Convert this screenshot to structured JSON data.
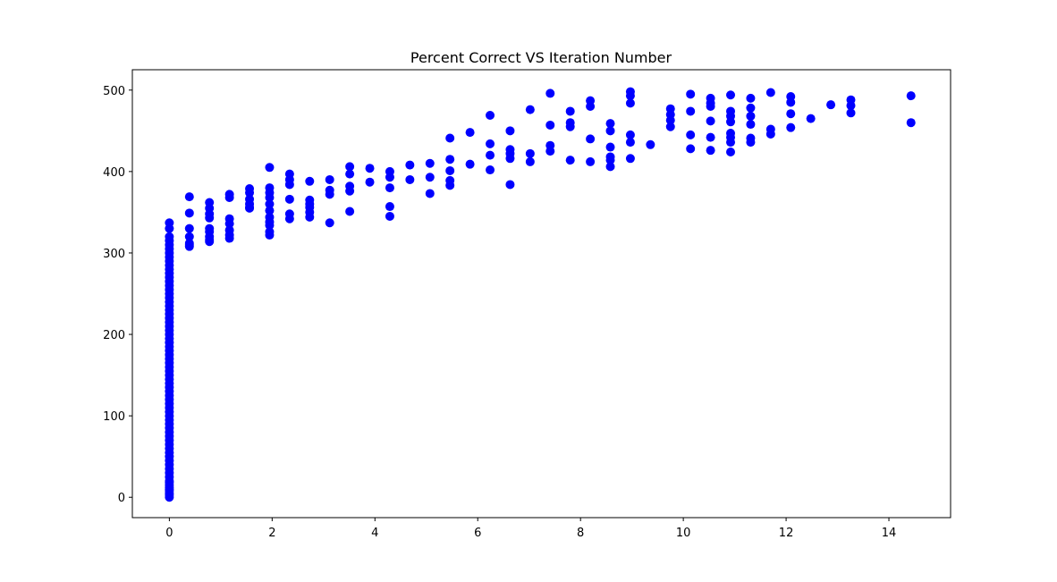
{
  "chart_data": {
    "type": "scatter",
    "title": "Percent Correct VS Iteration Number",
    "xlabel": "",
    "ylabel": "",
    "xlim": [
      -0.72,
      15.2
    ],
    "ylim": [
      -25,
      525
    ],
    "xticks": [
      0,
      2,
      4,
      6,
      8,
      10,
      12,
      14
    ],
    "yticks": [
      0,
      100,
      200,
      300,
      400,
      500
    ],
    "grid": false,
    "color": "#0000ff",
    "x": [
      0,
      0,
      0,
      0,
      0,
      0,
      0,
      0,
      0,
      0,
      0,
      0,
      0,
      0,
      0,
      0,
      0,
      0,
      0,
      0,
      0,
      0,
      0,
      0,
      0,
      0,
      0,
      0,
      0,
      0,
      0,
      0,
      0,
      0,
      0,
      0,
      0,
      0,
      0,
      0,
      0,
      0,
      0,
      0,
      0,
      0,
      0,
      0,
      0,
      0,
      0,
      0,
      0,
      0,
      0,
      0,
      0,
      0,
      0,
      0,
      0,
      0,
      0,
      0,
      0,
      0,
      0,
      0,
      0,
      0,
      0,
      0.39,
      0.39,
      0.39,
      0.39,
      0.39,
      0.39,
      0.39,
      0.78,
      0.78,
      0.78,
      0.78,
      0.78,
      0.78,
      0.78,
      0.78,
      0.78,
      1.17,
      1.17,
      1.17,
      1.17,
      1.17,
      1.17,
      1.17,
      1.56,
      1.56,
      1.56,
      1.56,
      1.56,
      1.56,
      1.95,
      1.95,
      1.95,
      1.95,
      1.95,
      1.95,
      1.95,
      1.95,
      1.95,
      1.95,
      1.95,
      2.34,
      2.34,
      2.34,
      2.34,
      2.34,
      2.34,
      2.73,
      2.73,
      2.73,
      2.73,
      2.73,
      2.73,
      3.12,
      3.12,
      3.12,
      3.12,
      3.51,
      3.51,
      3.51,
      3.51,
      3.51,
      3.9,
      3.9,
      4.29,
      4.29,
      4.29,
      4.29,
      4.29,
      4.68,
      4.68,
      5.07,
      5.07,
      5.07,
      5.46,
      5.46,
      5.46,
      5.46,
      5.46,
      5.85,
      5.85,
      6.24,
      6.24,
      6.24,
      6.24,
      6.63,
      6.63,
      6.63,
      6.63,
      6.63,
      7.02,
      7.02,
      7.02,
      7.41,
      7.41,
      7.41,
      7.41,
      7.8,
      7.8,
      7.8,
      7.8,
      8.19,
      8.19,
      8.19,
      8.19,
      8.58,
      8.58,
      8.58,
      8.58,
      8.58,
      8.58,
      8.97,
      8.97,
      8.97,
      8.97,
      8.97,
      8.97,
      9.36,
      9.75,
      9.75,
      9.75,
      9.75,
      10.14,
      10.14,
      10.14,
      10.14,
      10.53,
      10.53,
      10.53,
      10.53,
      10.53,
      10.53,
      10.92,
      10.92,
      10.92,
      10.92,
      10.92,
      10.92,
      10.92,
      10.92,
      11.31,
      11.31,
      11.31,
      11.31,
      11.31,
      11.31,
      11.7,
      11.7,
      11.7,
      12.09,
      12.09,
      12.09,
      12.09,
      12.48,
      12.87,
      13.26,
      13.26,
      13.26,
      14.43,
      14.43
    ],
    "y": [
      0,
      5,
      10,
      15,
      20,
      25,
      30,
      35,
      40,
      45,
      50,
      55,
      60,
      65,
      70,
      75,
      80,
      85,
      90,
      95,
      100,
      105,
      110,
      115,
      120,
      125,
      130,
      135,
      140,
      145,
      150,
      155,
      160,
      165,
      170,
      175,
      180,
      185,
      190,
      195,
      200,
      205,
      210,
      215,
      220,
      225,
      230,
      235,
      240,
      245,
      250,
      255,
      260,
      265,
      270,
      275,
      280,
      285,
      290,
      295,
      300,
      305,
      310,
      315,
      320,
      330,
      337,
      3,
      8,
      12,
      18,
      369,
      349,
      330,
      320,
      312,
      308,
      310,
      362,
      355,
      348,
      343,
      330,
      326,
      320,
      316,
      314,
      372,
      368,
      342,
      336,
      328,
      322,
      318,
      379,
      374,
      366,
      360,
      356,
      355,
      405,
      380,
      374,
      368,
      360,
      352,
      344,
      338,
      334,
      326,
      322,
      397,
      390,
      384,
      366,
      348,
      342,
      388,
      365,
      360,
      356,
      350,
      344,
      390,
      377,
      372,
      337,
      406,
      397,
      382,
      376,
      351,
      404,
      387,
      400,
      393,
      380,
      357,
      345,
      408,
      390,
      410,
      393,
      373,
      441,
      415,
      401,
      389,
      383,
      448,
      409,
      469,
      434,
      420,
      402,
      450,
      427,
      422,
      416,
      384,
      476,
      422,
      412,
      496,
      457,
      432,
      425,
      474,
      460,
      455,
      414,
      487,
      480,
      440,
      412,
      459,
      450,
      430,
      418,
      414,
      406,
      498,
      493,
      484,
      445,
      436,
      416,
      433,
      477,
      470,
      463,
      455,
      495,
      474,
      445,
      428,
      490,
      484,
      480,
      462,
      442,
      426,
      494,
      474,
      468,
      461,
      447,
      442,
      436,
      424,
      490,
      478,
      468,
      458,
      441,
      436,
      497,
      452,
      446,
      492,
      485,
      471,
      454,
      465,
      482,
      488,
      481,
      472,
      493,
      460
    ]
  }
}
